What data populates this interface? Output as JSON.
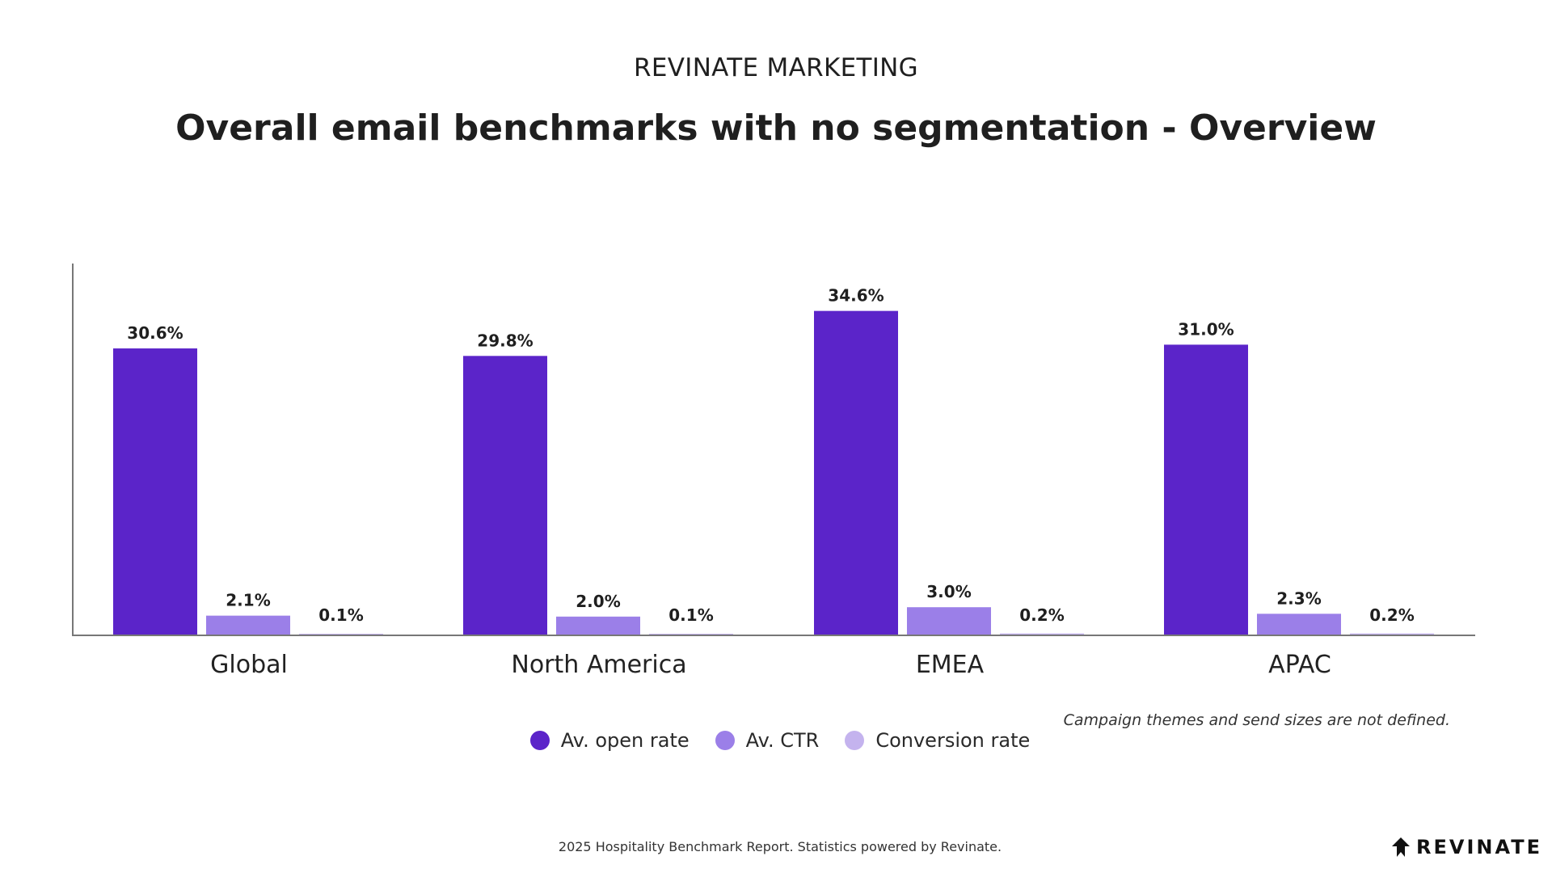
{
  "header": {
    "kicker": "REVINATE MARKETING",
    "title": "Overall email benchmarks with no segmentation - Overview"
  },
  "chart_data": {
    "type": "bar",
    "title": "Overall email benchmarks with no segmentation - Overview",
    "categories": [
      "Global",
      "North America",
      "EMEA",
      "APAC"
    ],
    "series": [
      {
        "name": "Av. open rate",
        "values": [
          30.6,
          29.8,
          34.6,
          31.0
        ],
        "labels": [
          "30.6%",
          "29.8%",
          "34.6%",
          "31.0%"
        ],
        "color": "#5b24c9"
      },
      {
        "name": "Av. CTR",
        "values": [
          2.1,
          2.0,
          3.0,
          2.3
        ],
        "labels": [
          "2.1%",
          "2.0%",
          "3.0%",
          "2.3%"
        ],
        "color": "#9b7fe8"
      },
      {
        "name": "Conversion rate",
        "values": [
          0.1,
          0.1,
          0.2,
          0.2
        ],
        "labels": [
          "0.1%",
          "0.1%",
          "0.2%",
          "0.2%"
        ],
        "color": "#c4b3ee"
      }
    ],
    "ylim": [
      0,
      40
    ],
    "grid": false,
    "legend_position": "bottom-center",
    "xlabel": "",
    "ylabel": ""
  },
  "legend": {
    "items": [
      {
        "label": "Av. open rate",
        "color": "#5b24c9"
      },
      {
        "label": "Av. CTR",
        "color": "#9b7fe8"
      },
      {
        "label": "Conversion rate",
        "color": "#c4b3ee"
      }
    ]
  },
  "note": "Campaign themes and send sizes are not defined.",
  "footer": "2025 Hospitality Benchmark Report. Statistics powered by Revinate.",
  "logo": {
    "text": "REVINATE",
    "icon": "revinate-logo-icon"
  }
}
